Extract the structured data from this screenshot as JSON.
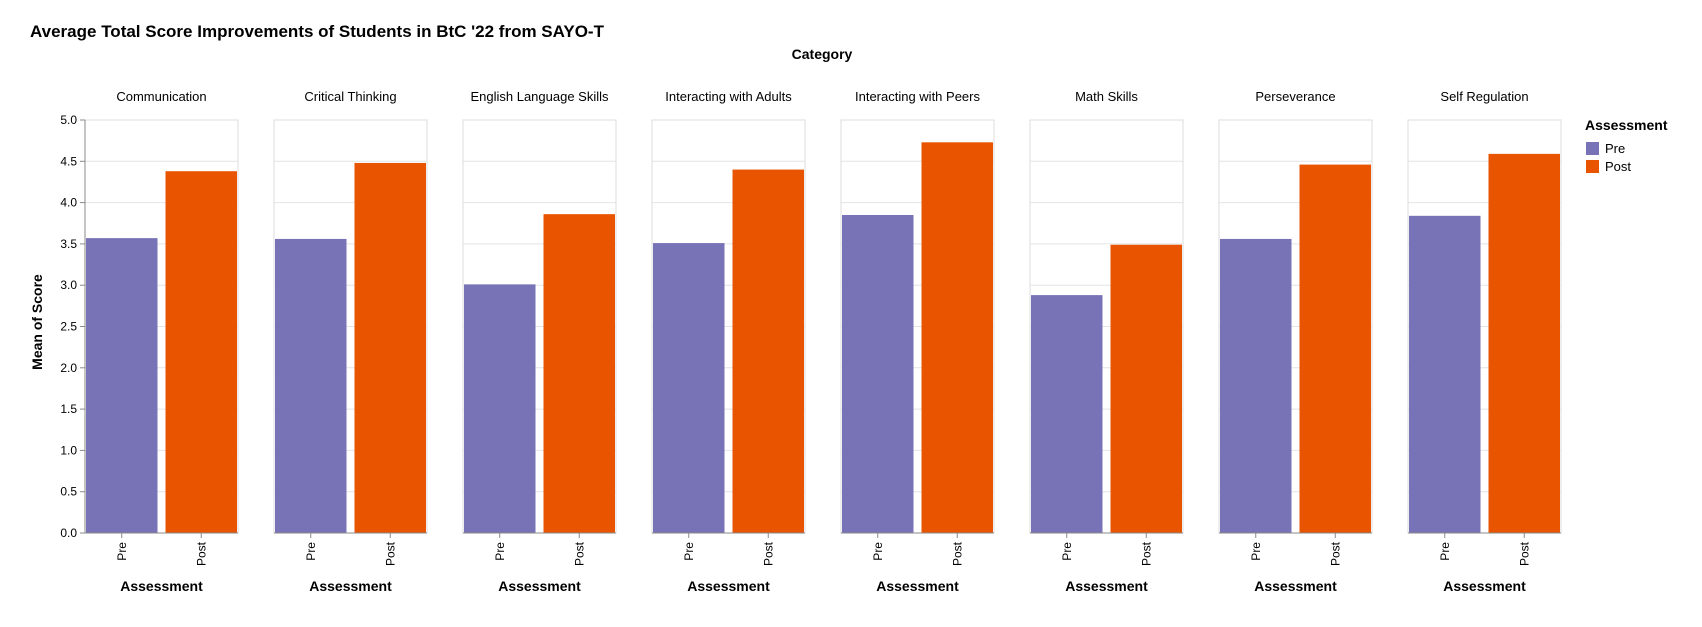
{
  "title": "Average Total Score Improvements of Students in BtC '22 from SAYO-T",
  "chart_data": {
    "type": "bar",
    "title": "Average Total Score Improvements of Students in BtC '22 from SAYO-T",
    "facet_title": "Category",
    "ylabel": "Mean of Score",
    "xlabel": "Assessment",
    "ylim": [
      0,
      5
    ],
    "yticks": [
      "0.0",
      "0.5",
      "1.0",
      "1.5",
      "2.0",
      "2.5",
      "3.0",
      "3.5",
      "4.0",
      "4.5",
      "5.0"
    ],
    "x_categories": [
      "Pre",
      "Post"
    ],
    "grid": true,
    "legend": {
      "title": "Assessment",
      "placement": "right",
      "items": [
        {
          "label": "Pre",
          "color": "#7872b7"
        },
        {
          "label": "Post",
          "color": "#e85400"
        }
      ]
    },
    "facets": [
      {
        "category": "Communication",
        "values": [
          3.57,
          4.38
        ]
      },
      {
        "category": "Critical Thinking",
        "values": [
          3.56,
          4.48
        ]
      },
      {
        "category": "English Language Skills",
        "values": [
          3.01,
          3.86
        ]
      },
      {
        "category": "Interacting with Adults",
        "values": [
          3.51,
          4.4
        ]
      },
      {
        "category": "Interacting with Peers",
        "values": [
          3.85,
          4.73
        ]
      },
      {
        "category": "Math Skills",
        "values": [
          2.88,
          3.49
        ]
      },
      {
        "category": "Perseverance",
        "values": [
          3.56,
          4.46
        ]
      },
      {
        "category": "Self Regulation",
        "values": [
          3.84,
          4.59
        ]
      }
    ]
  }
}
